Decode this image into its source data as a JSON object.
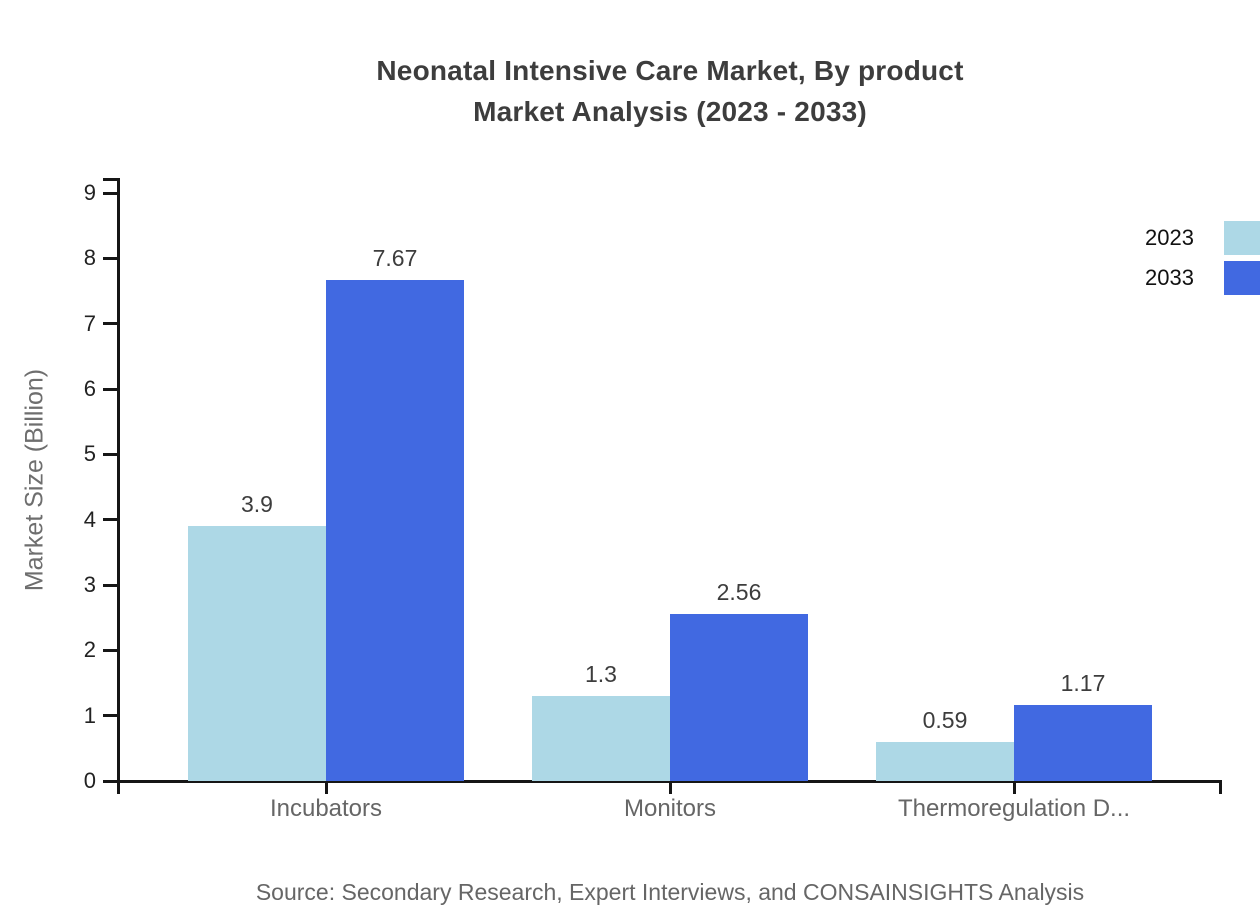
{
  "chart": {
    "title_line1": "Neonatal Intensive Care Market, By product",
    "title_line2": "Market Analysis (2023 - 2033)",
    "ylabel": "Market Size (Billion)",
    "source": "Source: Secondary Research, Expert Interviews, and CONSAINSIGHTS Analysis"
  },
  "chart_data": {
    "type": "bar",
    "title": "Neonatal Intensive Care Market, By product Market Analysis (2023 - 2033)",
    "xlabel": "",
    "ylabel": "Market Size (Billion)",
    "categories": [
      "Incubators",
      "Monitors",
      "Thermoregulation D..."
    ],
    "series": [
      {
        "name": "2023",
        "color": "#ADD8E6",
        "values": [
          3.9,
          1.3,
          0.59
        ]
      },
      {
        "name": "2033",
        "color": "#4169E1",
        "values": [
          7.67,
          2.56,
          1.17
        ]
      }
    ],
    "value_labels": [
      "3.9",
      "1.3",
      "0.59",
      "7.67",
      "2.56",
      "1.17"
    ],
    "ylim": [
      0,
      9
    ],
    "ytick_step": 1,
    "yticks": [
      0,
      1,
      2,
      3,
      4,
      5,
      6,
      7,
      8,
      9
    ],
    "grid": false,
    "legend_position": "top-right",
    "axis_color": "#161616",
    "source": "Source: Secondary Research, Expert Interviews, and CONSAINSIGHTS Analysis"
  }
}
